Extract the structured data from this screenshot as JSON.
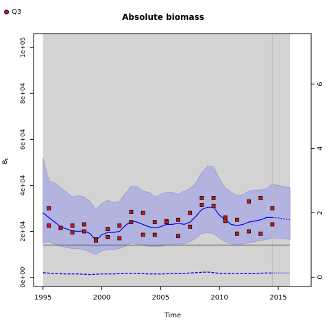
{
  "chart_data": {
    "type": "scatter",
    "title": "Absolute biomass",
    "xlabel": "Time",
    "ylabel": "B",
    "ylabel_subscript": "t",
    "legend": {
      "position": "top-left",
      "label": "Q3"
    },
    "xlim": [
      1994.2,
      2017.8
    ],
    "ylim": [
      -4000,
      106000
    ],
    "right_ylim": [
      -0.29,
      7.57
    ],
    "x_ticks": [
      1995,
      2000,
      2005,
      2010,
      2015
    ],
    "x_tick_labels": [
      "1995",
      "2000",
      "2005",
      "2010",
      "2015"
    ],
    "y_ticks": [
      0,
      20000,
      40000,
      60000,
      80000,
      100000
    ],
    "y_tick_labels": [
      "0e+00",
      "2e+04",
      "4e+04",
      "6e+04",
      "8e+04",
      "1e+05"
    ],
    "right_y_ticks": [
      0,
      2,
      4,
      6
    ],
    "right_y_tick_labels": [
      "0",
      "2",
      "4",
      "6"
    ],
    "shaded_region": [
      1995,
      2016
    ],
    "reference_line_y": 14000,
    "vertical_line_x": 2014.5,
    "biomass_estimate": {
      "x": [
        1995,
        1995.5,
        1996,
        1996.5,
        1997,
        1997.5,
        1998,
        1998.5,
        1999,
        1999.5,
        2000,
        2000.5,
        2001,
        2001.5,
        2002,
        2002.5,
        2003,
        2003.5,
        2004,
        2004.5,
        2005,
        2005.5,
        2006,
        2006.5,
        2007,
        2007.5,
        2008,
        2008.5,
        2009,
        2009.5,
        2010,
        2010.5,
        2011,
        2011.5,
        2012,
        2012.5,
        2013,
        2013.5,
        2014,
        2014.5
      ],
      "y": [
        28000,
        26000,
        24000,
        22000,
        21000,
        20200,
        20000,
        20200,
        19000,
        16000,
        18500,
        19500,
        19500,
        20000,
        22500,
        24500,
        24000,
        23000,
        22000,
        21500,
        22000,
        23000,
        23000,
        23500,
        23000,
        24000,
        26500,
        29500,
        30500,
        30500,
        27000,
        25000,
        23000,
        22500,
        23000,
        24000,
        24500,
        25000,
        26000,
        26000
      ]
    },
    "biomass_upper": [
      52000,
      42000,
      41000,
      39000,
      37000,
      35000,
      35500,
      35000,
      33000,
      29500,
      32000,
      33500,
      32500,
      33000,
      36500,
      39500,
      39500,
      37500,
      37000,
      35000,
      36000,
      37000,
      37000,
      36000,
      37500,
      38500,
      41000,
      45500,
      48500,
      48000,
      43000,
      39000,
      37000,
      35500,
      36000,
      37500,
      38000,
      38000,
      38500,
      40500
    ],
    "biomass_lower": [
      15000,
      15500,
      14500,
      13500,
      13000,
      12500,
      12500,
      12000,
      11000,
      10000,
      11500,
      12000,
      12000,
      12500,
      13500,
      15000,
      14500,
      14000,
      13500,
      13500,
      13500,
      14000,
      14000,
      14500,
      14500,
      15500,
      17000,
      19000,
      19500,
      19000,
      17000,
      15500,
      14500,
      14000,
      14500,
      15000,
      15500,
      16000,
      16500,
      17000
    ],
    "biomass_forecast": {
      "x": [
        2014.5,
        2015,
        2015.5,
        2016
      ],
      "y": [
        26000,
        25800,
        25400,
        25000
      ],
      "upper": [
        40500,
        40000,
        39500,
        39000
      ],
      "lower": [
        17000,
        17000,
        16800,
        16500
      ]
    },
    "observations": {
      "name": "Q3",
      "x": [
        1995.5,
        1996.5,
        1997.5,
        1998.5,
        1999.5,
        2000.5,
        2001.5,
        2002.5,
        2003.5,
        2004.5,
        2005.5,
        2006.5,
        2007.5,
        2008.5,
        2009.5,
        2010.5,
        2011.5,
        2012.5,
        2013.5,
        2014.5,
        1995.5,
        1996.5,
        1997.5,
        1998.5,
        1999.5,
        2000.5,
        2001.5,
        2002.5,
        2003.5,
        2004.5,
        2005.5,
        2006.5,
        2007.5,
        2008.5,
        2009.5,
        2010.5,
        2011.5,
        2012.5,
        2013.5,
        2014.5
      ],
      "y": [
        30000,
        21500,
        22500,
        23000,
        16500,
        21000,
        22500,
        28500,
        28000,
        24000,
        24500,
        25000,
        28000,
        34500,
        34500,
        26000,
        25000,
        33000,
        34500,
        30000,
        22500,
        21500,
        19500,
        20000,
        16000,
        17500,
        17000,
        24000,
        18500,
        18500,
        24000,
        18000,
        22000,
        31500,
        31000,
        24500,
        19000,
        20000,
        19000,
        23000
      ]
    },
    "fishing_mortality": {
      "x": [
        1995,
        1996,
        1997,
        1998,
        1999,
        2000,
        2001,
        2002,
        2003,
        2004,
        2005,
        2006,
        2007,
        2008,
        2009,
        2010,
        2011,
        2012,
        2013,
        2014,
        2014.5
      ],
      "y": [
        0.14,
        0.11,
        0.1,
        0.1,
        0.08,
        0.1,
        0.1,
        0.12,
        0.12,
        0.1,
        0.1,
        0.11,
        0.12,
        0.14,
        0.16,
        0.12,
        0.11,
        0.11,
        0.12,
        0.13,
        0.13
      ]
    },
    "fishing_mortality_forecast": {
      "x": [
        2014.5,
        2016
      ],
      "y": [
        0.13,
        0.13
      ]
    },
    "colors": {
      "shading": "#d3d3d3",
      "band": "#b2b3de",
      "band_edge": "#9a9ad6",
      "line": "#0000ee",
      "point_fill": "#d0161b",
      "reference": "#404040"
    }
  }
}
